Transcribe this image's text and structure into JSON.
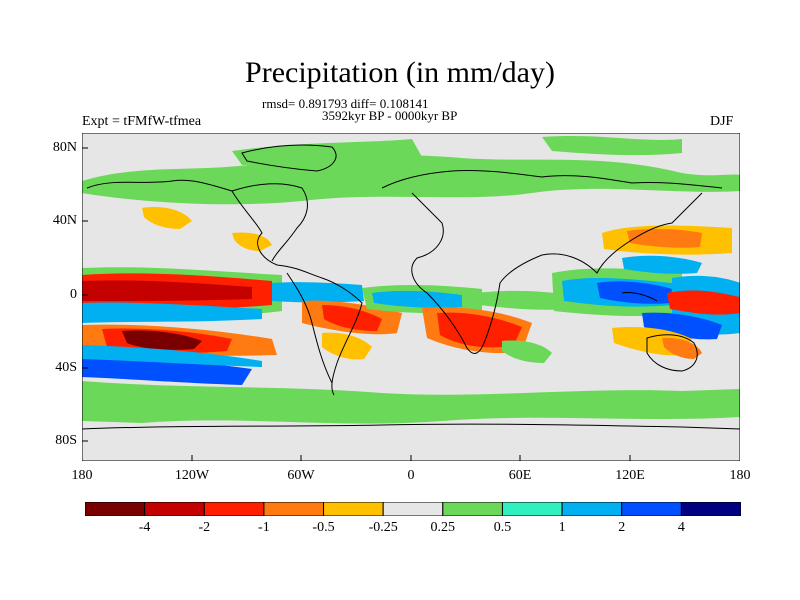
{
  "title": "Precipitation (in mm/day)",
  "stats": "rmsd= 0.891793 diff= 0.108141",
  "period": "3592kyr BP - 0000kyr BP",
  "experiment": "Expt = tFMfW-tfmea",
  "season": "DJF",
  "map": {
    "lat_ticks": [
      "80N",
      "40N",
      "0",
      "40S",
      "80S"
    ],
    "lon_ticks": [
      "180",
      "120W",
      "60W",
      "0",
      "60E",
      "120E",
      "180"
    ],
    "ocean_color": "#e6e6e6",
    "coast_color": "#000000"
  },
  "colorbar": {
    "colors": [
      "#7a0000",
      "#c40000",
      "#ff2000",
      "#ff7a10",
      "#ffc000",
      "#e6e6e6",
      "#6cd85a",
      "#30f0c0",
      "#00b0f0",
      "#0050ff",
      "#000080"
    ],
    "labels": [
      "-4",
      "-2",
      "-1",
      "-0.5",
      "-0.25",
      "0.25",
      "0.5",
      "1",
      "2",
      "4"
    ]
  }
}
